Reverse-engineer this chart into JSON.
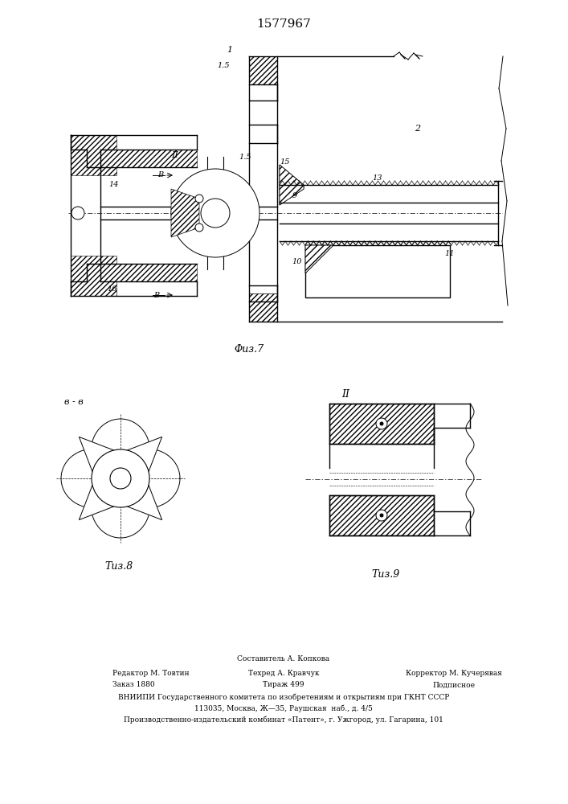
{
  "title": "1577967",
  "background_color": "#ffffff",
  "fig7_caption": "Τиз.7",
  "fig8_caption": "Τиз.8",
  "fig9_caption": "Τиз.9",
  "footer_line1": "Составитель А. Копкова",
  "footer_line2a": "Редактор М. Товтин",
  "footer_line2b": "Техред А. Кравчук",
  "footer_line2c": "Корректор М. Кучерявая",
  "footer_line3a": "Заказ 1880",
  "footer_line3b": "Тираж 499",
  "footer_line3c": "Подписное",
  "footer_line4": "ВНИИПИ Государственного комитета по изобретениям и открытиям при ГКНТ СССР",
  "footer_line5": "113035, Москва, Ж—35, Раушская  наб., д. 4/5",
  "footer_line6": "Производственно-издательский комбинат «Патент», г. Ужгород, ул. Гагарина, 101"
}
